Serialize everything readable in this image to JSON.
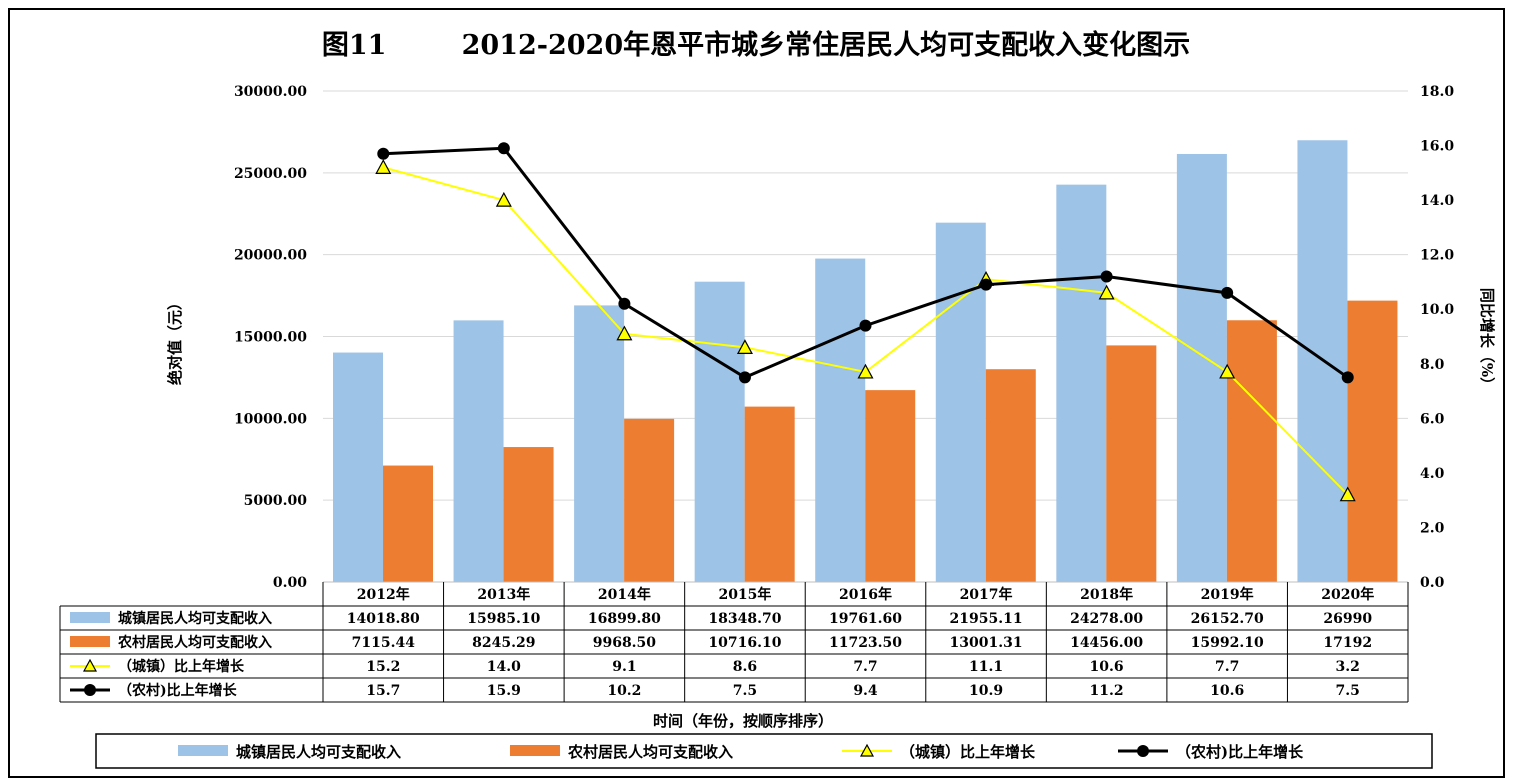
{
  "chart_data": {
    "type": "bar",
    "title": "图11        2012-2020年恩平市城乡常住居民人均可支配收入变化图示",
    "xlabel": "时间（年份，按顺序排序）",
    "ylabel": "绝对值（元）",
    "y2label": "同比增长（%）",
    "ylim": [
      0,
      30000
    ],
    "y2lim": [
      0,
      18
    ],
    "yticks": [
      "0.00",
      "5000.00",
      "10000.00",
      "15000.00",
      "20000.00",
      "25000.00",
      "30000.00"
    ],
    "y2ticks": [
      "0.0",
      "2.0",
      "4.0",
      "6.0",
      "8.0",
      "10.0",
      "12.0",
      "14.0",
      "16.0",
      "18.0"
    ],
    "grid": true,
    "legend_position": "bottom",
    "categories": [
      "2012年",
      "2013年",
      "2014年",
      "2015年",
      "2016年",
      "2017年",
      "2018年",
      "2019年",
      "2020年"
    ],
    "series": [
      {
        "name": "城镇居民人均可支配收入",
        "kind": "bar",
        "axis": "left",
        "color": "#9dc3e6",
        "values": [
          14018.8,
          15985.1,
          16899.8,
          18348.7,
          19761.6,
          21955.11,
          24278.0,
          26152.7,
          26990
        ],
        "labels": [
          "14018.80",
          "15985.10",
          "16899.80",
          "18348.70",
          "19761.60",
          "21955.11",
          "24278.00",
          "26152.70",
          "26990"
        ]
      },
      {
        "name": "农村居民人均可支配收入",
        "kind": "bar",
        "axis": "left",
        "color": "#ed7d31",
        "values": [
          7115.44,
          8245.29,
          9968.5,
          10716.1,
          11723.5,
          13001.31,
          14456.0,
          15992.1,
          17192
        ],
        "labels": [
          "7115.44",
          "8245.29",
          "9968.50",
          "10716.10",
          "11723.50",
          "13001.31",
          "14456.00",
          "15992.10",
          "17192"
        ]
      },
      {
        "name": "（城镇）比上年增长",
        "kind": "line",
        "axis": "right",
        "color": "#ffff00",
        "marker": "triangle",
        "values": [
          15.2,
          14.0,
          9.1,
          8.6,
          7.7,
          11.1,
          10.6,
          7.7,
          3.2
        ],
        "labels": [
          "15.2",
          "14.0",
          "9.1",
          "8.6",
          "7.7",
          "11.1",
          "10.6",
          "7.7",
          "3.2"
        ]
      },
      {
        "name": "（农村)比上年增长",
        "kind": "line",
        "axis": "right",
        "color": "#000000",
        "marker": "circle",
        "values": [
          15.7,
          15.9,
          10.2,
          7.5,
          9.4,
          10.9,
          11.2,
          10.6,
          7.5
        ],
        "labels": [
          "15.7",
          "15.9",
          "10.2",
          "7.5",
          "9.4",
          "10.9",
          "11.2",
          "10.6",
          "7.5"
        ]
      }
    ]
  }
}
